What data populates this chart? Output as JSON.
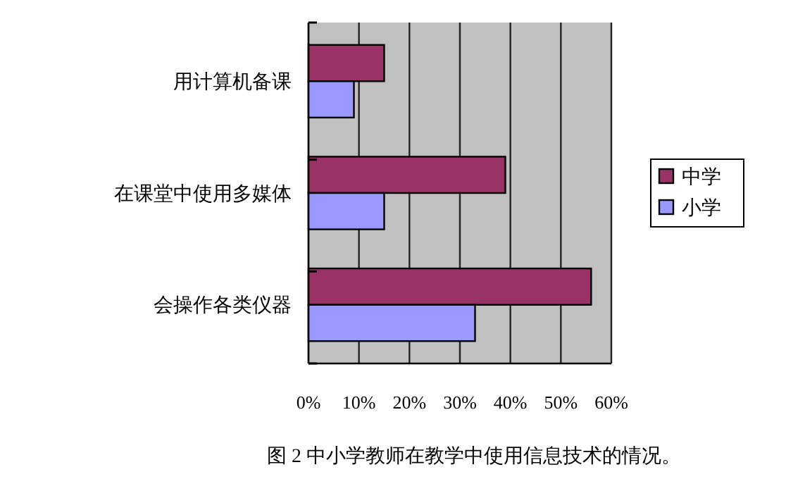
{
  "chart_data": {
    "type": "bar",
    "orientation": "horizontal",
    "title": "图 2 中小学教师在教学中使用信息技术的情况。",
    "categories": [
      "用计算机备课",
      "在课堂中使用多媒体",
      "会操作各类仪器"
    ],
    "series": [
      {
        "name": "中学",
        "color": "#993366",
        "values": [
          15,
          39,
          56
        ]
      },
      {
        "name": "小学",
        "color": "#9999ff",
        "values": [
          9,
          15,
          33
        ]
      }
    ],
    "xlim": [
      0,
      60
    ],
    "xticks": [
      {
        "value": 0,
        "label": "0%"
      },
      {
        "value": 10,
        "label": "10%"
      },
      {
        "value": 20,
        "label": "20%"
      },
      {
        "value": 30,
        "label": "30%"
      },
      {
        "value": 40,
        "label": "40%"
      },
      {
        "value": 50,
        "label": "50%"
      },
      {
        "value": 60,
        "label": "60%"
      }
    ],
    "grid": "x",
    "legend": "right"
  }
}
